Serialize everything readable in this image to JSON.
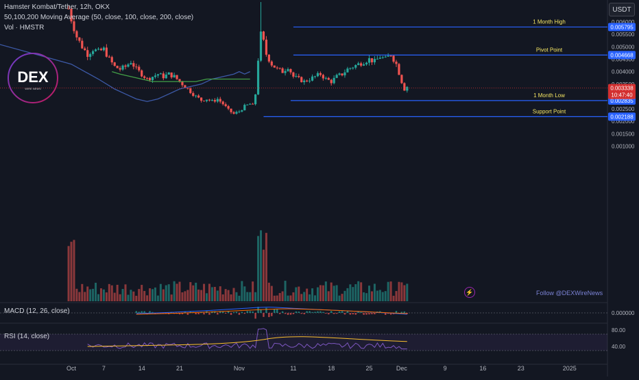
{
  "header": {
    "symbol_line": "Hamster Kombat/Tether, 12h, OKX",
    "ma_line": "50,100,200 Moving Average (50, close, 100, close, 200, close)",
    "vol_line": "Vol · HMSTR",
    "currency_button": "USDT"
  },
  "logo": {
    "text": "DEX",
    "subtext": "WIRE NEWS"
  },
  "watermark": "Follow @DEXWireNews",
  "bolt_icon": "lightning-icon",
  "colors": {
    "background": "#131722",
    "up": "#26a69a",
    "down": "#ef5350",
    "level_line": "#2962ff",
    "level_text": "#f5e663",
    "ma50": "#3d5aa8",
    "ma100": "#43a047",
    "current_price": "#d32f2f"
  },
  "chart_data": {
    "type": "candlestick",
    "title": "Hamster Kombat/Tether, 12h, OKX",
    "y_ticks": [
      "0.006000",
      "0.005500",
      "0.005000",
      "0.004500",
      "0.004000",
      "0.003500",
      "0.003000",
      "0.002500",
      "0.002000",
      "0.001500",
      "0.001000"
    ],
    "x_ticks": [
      {
        "label": "Oct",
        "day": 0
      },
      {
        "label": "7",
        "day": 6
      },
      {
        "label": "14",
        "day": 13
      },
      {
        "label": "21",
        "day": 20
      },
      {
        "label": "Nov",
        "day": 31
      },
      {
        "label": "11",
        "day": 41
      },
      {
        "label": "18",
        "day": 48
      },
      {
        "label": "25",
        "day": 55
      },
      {
        "label": "Dec",
        "day": 61
      },
      {
        "label": "9",
        "day": 69
      },
      {
        "label": "16",
        "day": 76
      },
      {
        "label": "23",
        "day": 83
      },
      {
        "label": "2025",
        "day": 92
      }
    ],
    "levels": [
      {
        "name": "1 Month High",
        "price": 0.005795,
        "price_label": "0.005795",
        "start_day": 41
      },
      {
        "name": "Pivot Point",
        "price": 0.004668,
        "price_label": "0.004668",
        "start_day": 41
      },
      {
        "name": "1 Month Low",
        "price": 0.002835,
        "price_label": "0.002835",
        "start_day": 40.5
      },
      {
        "name": "Support Point",
        "price": 0.002188,
        "price_label": "0.002188",
        "start_day": 35.5
      }
    ],
    "current_price": {
      "value": 0.003338,
      "label": "0.003338",
      "countdown": "10:47:40"
    },
    "key_points": [
      [
        -1.5,
        0.0074
      ],
      [
        0,
        0.0061
      ],
      [
        1,
        0.0054
      ],
      [
        2,
        0.005
      ],
      [
        3,
        0.0047
      ],
      [
        4,
        0.0049
      ],
      [
        5,
        0.0048
      ],
      [
        6,
        0.0049
      ],
      [
        7,
        0.0045
      ],
      [
        8,
        0.0042
      ],
      [
        9,
        0.0041
      ],
      [
        10,
        0.0042
      ],
      [
        11,
        0.0044
      ],
      [
        12,
        0.0041
      ],
      [
        13,
        0.0039
      ],
      [
        14,
        0.0037
      ],
      [
        15,
        0.0038
      ],
      [
        16,
        0.0039
      ],
      [
        17,
        0.0038
      ],
      [
        18,
        0.0039
      ],
      [
        19,
        0.0038
      ],
      [
        20,
        0.0036
      ],
      [
        21,
        0.0034
      ],
      [
        22,
        0.0032
      ],
      [
        23,
        0.003
      ],
      [
        24,
        0.00285
      ],
      [
        25,
        0.0029
      ],
      [
        26,
        0.0028
      ],
      [
        27,
        0.0029
      ],
      [
        28,
        0.0027
      ],
      [
        29,
        0.00245
      ],
      [
        30,
        0.0023
      ],
      [
        31,
        0.0024
      ],
      [
        32,
        0.0026
      ],
      [
        33,
        0.0027
      ],
      [
        33.7,
        0.0026
      ],
      [
        34,
        0.0031
      ],
      [
        34.5,
        0.0045
      ],
      [
        35,
        0.0055
      ],
      [
        35.5,
        0.0052
      ],
      [
        36,
        0.0047
      ],
      [
        37,
        0.0043
      ],
      [
        38,
        0.0041
      ],
      [
        39,
        0.004
      ],
      [
        40,
        0.0042
      ],
      [
        41,
        0.0038
      ],
      [
        42,
        0.0037
      ],
      [
        43,
        0.0036
      ],
      [
        44,
        0.0037
      ],
      [
        45,
        0.0038
      ],
      [
        46,
        0.0039
      ],
      [
        47,
        0.0037
      ],
      [
        48,
        0.0036
      ],
      [
        49,
        0.0038
      ],
      [
        50,
        0.0039
      ],
      [
        51,
        0.0041
      ],
      [
        52,
        0.0042
      ],
      [
        53,
        0.0043
      ],
      [
        54,
        0.0044
      ],
      [
        55,
        0.0045
      ],
      [
        56,
        0.0044
      ],
      [
        57,
        0.0046
      ],
      [
        58,
        0.0045
      ],
      [
        59,
        0.0047
      ],
      [
        60,
        0.0043
      ],
      [
        61,
        0.0036
      ],
      [
        61.5,
        0.0033
      ],
      [
        62,
        0.0034
      ]
    ],
    "ma50": {
      "name": "MA 50",
      "points": [
        [
          -15,
          0.0052
        ],
        [
          -5,
          0.0046
        ],
        [
          0,
          0.0043
        ],
        [
          5,
          0.0037
        ],
        [
          8,
          0.0033
        ],
        [
          10,
          0.0031
        ],
        [
          12,
          0.0029
        ],
        [
          14,
          0.0028
        ],
        [
          16,
          0.0029
        ],
        [
          18,
          0.0031
        ],
        [
          20,
          0.0033
        ],
        [
          22,
          0.0034
        ],
        [
          24,
          0.0035
        ],
        [
          26,
          0.0037
        ],
        [
          28,
          0.0038
        ],
        [
          30,
          0.0039
        ],
        [
          31,
          0.004
        ],
        [
          32,
          0.0039
        ],
        [
          33,
          0.004
        ]
      ]
    },
    "ma100": {
      "name": "MA 100",
      "points": [
        [
          7.5,
          0.004
        ],
        [
          9,
          0.0039
        ],
        [
          11,
          0.0038
        ],
        [
          13,
          0.0037
        ],
        [
          15,
          0.0036
        ],
        [
          17,
          0.0036
        ],
        [
          19,
          0.0036
        ],
        [
          21,
          0.0036
        ],
        [
          23,
          0.0036
        ],
        [
          25,
          0.0037
        ],
        [
          27,
          0.0037
        ],
        [
          29,
          0.0037
        ],
        [
          31,
          0.0037
        ],
        [
          33,
          0.0037
        ]
      ]
    },
    "volume": {
      "label": "Vol · HMSTR"
    },
    "macd": {
      "label": "MACD (12, 26, close)",
      "y_ticks": [
        "0.000000"
      ]
    },
    "rsi": {
      "label": "RSI (14, close)",
      "y_ticks": [
        "80.00",
        "40.00"
      ],
      "upper": 70,
      "lower": 30
    }
  }
}
